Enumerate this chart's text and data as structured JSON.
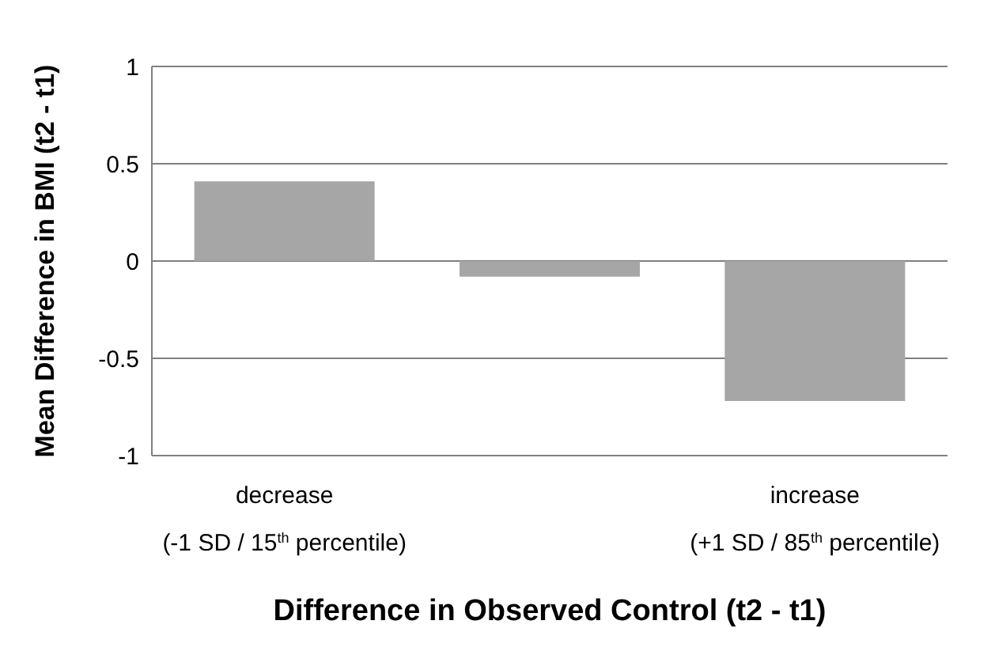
{
  "chart_data": {
    "type": "bar",
    "categories": [
      "decrease\n(-1 SD / 15$^{th}$ percentile)",
      null,
      "increase\n(+1 SD / 85$^{th}$ percentile)"
    ],
    "values": [
      0.41,
      -0.08,
      -0.72
    ],
    "color": "#a6a6a6",
    "ylim": [
      -1,
      1
    ],
    "yticks": [
      -1,
      -0.5,
      0,
      0.5,
      1
    ],
    "grid": "y",
    "xlabel": "Difference in Observed Control (t2 - t1)",
    "ylabel": "Mean Difference in BMI (t2 - t1)"
  }
}
